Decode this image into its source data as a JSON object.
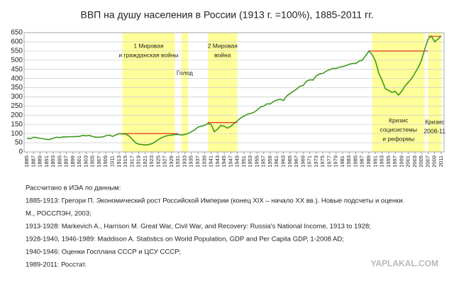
{
  "chart_data": {
    "type": "line",
    "title": "ВВП на душу населения в России (1913 г. =100%), 1885-2011 гг.",
    "x": [
      1885,
      1886,
      1887,
      1888,
      1889,
      1890,
      1891,
      1892,
      1893,
      1894,
      1895,
      1896,
      1897,
      1898,
      1899,
      1900,
      1901,
      1902,
      1903,
      1904,
      1905,
      1906,
      1907,
      1908,
      1909,
      1910,
      1911,
      1912,
      1913,
      1914,
      1915,
      1916,
      1917,
      1918,
      1919,
      1920,
      1921,
      1922,
      1923,
      1924,
      1925,
      1926,
      1927,
      1928,
      1929,
      1930,
      1931,
      1932,
      1933,
      1934,
      1935,
      1936,
      1937,
      1938,
      1939,
      1940,
      1941,
      1942,
      1943,
      1944,
      1945,
      1946,
      1947,
      1948,
      1949,
      1950,
      1951,
      1952,
      1953,
      1954,
      1955,
      1956,
      1957,
      1958,
      1959,
      1960,
      1961,
      1962,
      1963,
      1964,
      1965,
      1966,
      1967,
      1968,
      1969,
      1970,
      1971,
      1972,
      1973,
      1974,
      1975,
      1976,
      1977,
      1978,
      1979,
      1980,
      1981,
      1982,
      1983,
      1984,
      1985,
      1986,
      1987,
      1988,
      1989,
      1990,
      1991,
      1992,
      1993,
      1994,
      1995,
      1996,
      1997,
      1998,
      1999,
      2000,
      2001,
      2002,
      2003,
      2004,
      2005,
      2006,
      2007,
      2008,
      2009,
      2010,
      2011
    ],
    "series": [
      {
        "color": "#3c9a1c",
        "values": [
          75,
          72,
          80,
          78,
          74,
          72,
          68,
          68,
          75,
          80,
          78,
          82,
          82,
          83,
          83,
          84,
          85,
          90,
          88,
          90,
          84,
          80,
          80,
          82,
          88,
          92,
          85,
          92,
          100,
          98,
          97,
          88,
          70,
          50,
          42,
          40,
          38,
          40,
          45,
          55,
          68,
          78,
          85,
          90,
          92,
          95,
          95,
          92,
          95,
          100,
          110,
          120,
          135,
          140,
          145,
          155,
          150,
          110,
          125,
          145,
          140,
          130,
          140,
          155,
          170,
          185,
          195,
          205,
          210,
          215,
          228,
          245,
          250,
          262,
          262,
          275,
          283,
          288,
          280,
          305,
          318,
          330,
          342,
          358,
          362,
          385,
          393,
          392,
          415,
          425,
          428,
          440,
          448,
          455,
          455,
          462,
          465,
          470,
          478,
          482,
          482,
          495,
          500,
          525,
          550,
          530,
          495,
          430,
          390,
          345,
          335,
          325,
          330,
          310,
          330,
          360,
          380,
          400,
          430,
          460,
          500,
          560,
          615,
          632,
          600,
          615,
          632
        ]
      }
    ],
    "xlim": [
      1885,
      2011
    ],
    "xticks": [
      1885,
      1887,
      1889,
      1891,
      1893,
      1895,
      1897,
      1899,
      1901,
      1903,
      1905,
      1907,
      1909,
      1911,
      1913,
      1915,
      1917,
      1919,
      1921,
      1923,
      1925,
      1927,
      1929,
      1931,
      1933,
      1935,
      1937,
      1939,
      1941,
      1943,
      1945,
      1947,
      1949,
      1951,
      1953,
      1955,
      1957,
      1959,
      1961,
      1963,
      1965,
      1967,
      1969,
      1971,
      1973,
      1975,
      1977,
      1979,
      1981,
      1983,
      1985,
      1987,
      1989,
      1991,
      1993,
      1995,
      1997,
      1999,
      2001,
      2003,
      2005,
      2007,
      2009,
      2011
    ],
    "ylim": [
      0,
      650
    ],
    "yticks": [
      0,
      50,
      100,
      150,
      200,
      250,
      300,
      350,
      400,
      450,
      500,
      550,
      600,
      650
    ],
    "grid": true,
    "band_color": "#ffff99",
    "reference_color": "#e03020",
    "bands": [
      {
        "from": 1914,
        "to": 1930,
        "label": [
          "1 Мировая",
          "и гражданская войны"
        ]
      },
      {
        "from": 1932,
        "to": 1934,
        "label": [
          "Голод"
        ]
      },
      {
        "from": 1940,
        "to": 1949,
        "label": [
          "2 Мировая",
          "война"
        ]
      },
      {
        "from": 1990,
        "to": 2006,
        "label": [
          "Кризис",
          "социсистемы",
          "и реформы"
        ]
      },
      {
        "from": 2007,
        "to": 2011,
        "label": [
          "Кризис",
          "2008-11"
        ]
      }
    ],
    "reference_lines": [
      {
        "value": 100,
        "from": 1913,
        "to": 1931
      },
      {
        "value": 160,
        "from": 1940,
        "to": 1949
      },
      {
        "value": 550,
        "from": 1989,
        "to": 2007
      },
      {
        "value": 630,
        "from": 2007,
        "to": 2011
      }
    ]
  },
  "notes": [
    "Рассчитано в ИЭА по данным:",
    "1885-1913: Грегори П. Экономический рост Российской Империи (конец XIX – начало XX вв.). Новые подсчеты и оценки.",
    "М., РОССПЭН, 2003;",
    "1913-1928: Markevich A., Harrison M. Great War, Civil War, and Recovery: Russia's National Income, 1913 to 1928;",
    "1928-1940, 1946-1989: Maddison A. Statistics on World Population, GDP and Per Capita GDP, 1-2008 AD;",
    "1940-1946: Оценки Госплана СССР и ЦСУ СССР;",
    "1989-2011: Росстат."
  ],
  "watermark": "YAPLAKAL.COM"
}
